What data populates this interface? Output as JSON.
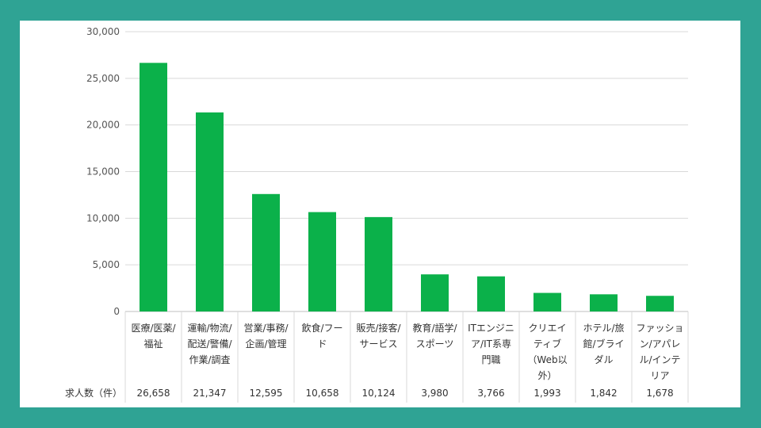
{
  "chart_data": {
    "type": "bar",
    "title": "",
    "xlabel": "",
    "ylabel": "",
    "ylim": [
      0,
      30000
    ],
    "yticks": [
      0,
      5000,
      10000,
      15000,
      20000,
      25000,
      30000
    ],
    "grid": true,
    "legend": "none",
    "bar_color": "#0bb14a",
    "categories": [
      [
        "医療/医薬/",
        "福祉"
      ],
      [
        "運輸/物流/",
        "配送/警備/",
        "作業/調査"
      ],
      [
        "営業/事務/",
        "企画/管理"
      ],
      [
        "飲食/フー",
        "ド"
      ],
      [
        "販売/接客/",
        "サービス"
      ],
      [
        "教育/語学/",
        "スポーツ"
      ],
      [
        "ITエンジニ",
        "ア/IT系専",
        "門職"
      ],
      [
        "クリエイ",
        "ティブ",
        "（Web以",
        "外）"
      ],
      [
        "ホテル/旅",
        "館/ブライ",
        "ダル"
      ],
      [
        "ファッショ",
        "ン/アパレ",
        "ル/インテ",
        "リア"
      ]
    ],
    "values": [
      26658,
      21347,
      12595,
      10658,
      10124,
      3980,
      3766,
      1993,
      1842,
      1678
    ],
    "table_row_label": "求人数（件）",
    "value_labels": [
      "26,658",
      "21,347",
      "12,595",
      "10,658",
      "10,124",
      "3,980",
      "3,766",
      "1,993",
      "1,842",
      "1,678"
    ]
  }
}
